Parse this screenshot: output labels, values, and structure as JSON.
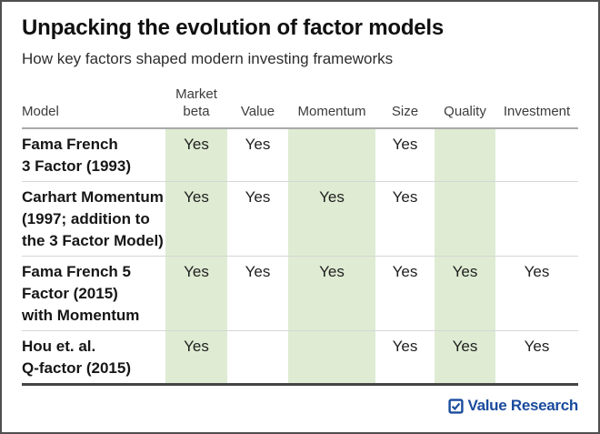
{
  "header": {
    "title": "Unpacking the evolution of factor models",
    "subtitle": "How key factors shaped modern investing frameworks"
  },
  "table": {
    "columns": [
      {
        "label": "Model",
        "highlight": false
      },
      {
        "label": "Market beta",
        "highlight": true
      },
      {
        "label": "Value",
        "highlight": false
      },
      {
        "label": "Momentum",
        "highlight": true
      },
      {
        "label": "Size",
        "highlight": false
      },
      {
        "label": "Quality",
        "highlight": true
      },
      {
        "label": "Investment",
        "highlight": false
      }
    ],
    "rows": [
      {
        "model_lines": [
          "Fama French",
          "3 Factor (1993)"
        ],
        "values": [
          "Yes",
          "Yes",
          "",
          "Yes",
          "",
          ""
        ]
      },
      {
        "model_lines": [
          "Carhart Momentum",
          "(1997; addition to",
          "the 3 Factor Model)"
        ],
        "values": [
          "Yes",
          "Yes",
          "Yes",
          "Yes",
          "",
          ""
        ]
      },
      {
        "model_lines": [
          "Fama French 5",
          "Factor (2015)",
          "with Momentum"
        ],
        "values": [
          "Yes",
          "Yes",
          "Yes",
          "Yes",
          "Yes",
          "Yes"
        ]
      },
      {
        "model_lines": [
          "Hou et. al.",
          "Q-factor (2015)"
        ],
        "values": [
          "Yes",
          "",
          "",
          "Yes",
          "Yes",
          "Yes"
        ]
      }
    ],
    "yes_label": "Yes"
  },
  "footer": {
    "brand": "Value Research",
    "logo_icon": "checked-checkbox-icon"
  },
  "colors": {
    "highlight_green": "#dfecd3",
    "brand_blue": "#1a4b9d",
    "rule_dark": "#454545",
    "rule_light": "#d6d6d6"
  },
  "chart_data": {
    "type": "table",
    "title": "Unpacking the evolution of factor models",
    "subtitle": "How key factors shaped modern investing frameworks",
    "columns": [
      "Model",
      "Market beta",
      "Value",
      "Momentum",
      "Size",
      "Quality",
      "Investment"
    ],
    "rows": [
      [
        "Fama French 3 Factor (1993)",
        "Yes",
        "Yes",
        "",
        "Yes",
        "",
        ""
      ],
      [
        "Carhart Momentum (1997; addition to the 3 Factor Model)",
        "Yes",
        "Yes",
        "Yes",
        "Yes",
        "",
        ""
      ],
      [
        "Fama French 5 Factor (2015) with Momentum",
        "Yes",
        "Yes",
        "Yes",
        "Yes",
        "Yes",
        "Yes"
      ],
      [
        "Hou et. al. Q-factor (2015)",
        "Yes",
        "",
        "",
        "Yes",
        "Yes",
        "Yes"
      ]
    ],
    "highlighted_columns": [
      "Market beta",
      "Momentum",
      "Quality"
    ],
    "legend_position": "none",
    "grid": "horizontal-rules"
  }
}
